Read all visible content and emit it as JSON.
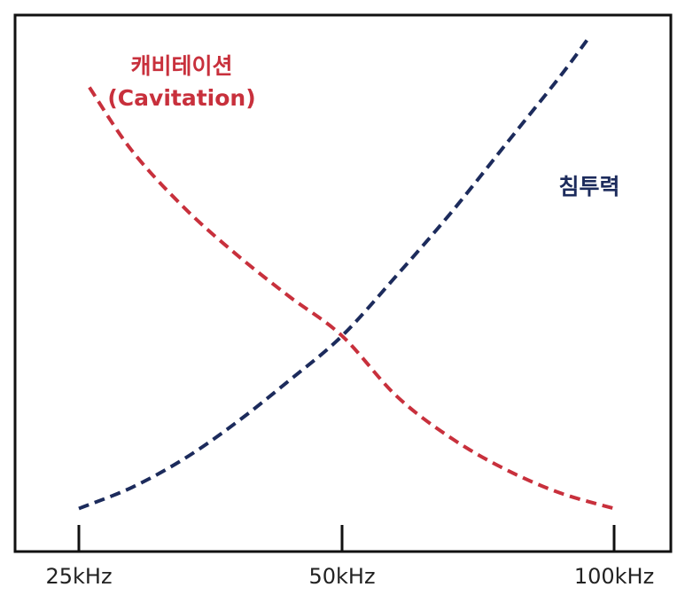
{
  "colors": {
    "cavitation": "#c8303c",
    "penetration": "#1c2b5c",
    "frame": "#111111"
  },
  "chart_data": {
    "type": "line",
    "title": "",
    "xlabel": "",
    "ylabel": "",
    "x_ticks": [
      "25kHz",
      "50kHz",
      "100kHz"
    ],
    "grid": false,
    "legend": "inline labels",
    "series": [
      {
        "name_lines": [
          "캐비테이션",
          "(Cavitation)"
        ],
        "trend": "decreasing",
        "values": [
          {
            "x": 26,
            "y": 0.85
          },
          {
            "x": 30,
            "y": 0.73
          },
          {
            "x": 35,
            "y": 0.62
          },
          {
            "x": 40,
            "y": 0.53
          },
          {
            "x": 45,
            "y": 0.45
          },
          {
            "x": 50,
            "y": 0.375
          },
          {
            "x": 60,
            "y": 0.26
          },
          {
            "x": 70,
            "y": 0.18
          },
          {
            "x": 80,
            "y": 0.12
          },
          {
            "x": 90,
            "y": 0.075
          },
          {
            "x": 100,
            "y": 0.045
          }
        ]
      },
      {
        "name_lines": [
          "침투력"
        ],
        "trend": "increasing",
        "values": [
          {
            "x": 25,
            "y": 0.045
          },
          {
            "x": 30,
            "y": 0.085
          },
          {
            "x": 35,
            "y": 0.14
          },
          {
            "x": 40,
            "y": 0.21
          },
          {
            "x": 45,
            "y": 0.29
          },
          {
            "x": 50,
            "y": 0.375
          },
          {
            "x": 60,
            "y": 0.49
          },
          {
            "x": 70,
            "y": 0.61
          },
          {
            "x": 80,
            "y": 0.74
          },
          {
            "x": 90,
            "y": 0.87
          },
          {
            "x": 95,
            "y": 0.94
          }
        ]
      }
    ]
  }
}
